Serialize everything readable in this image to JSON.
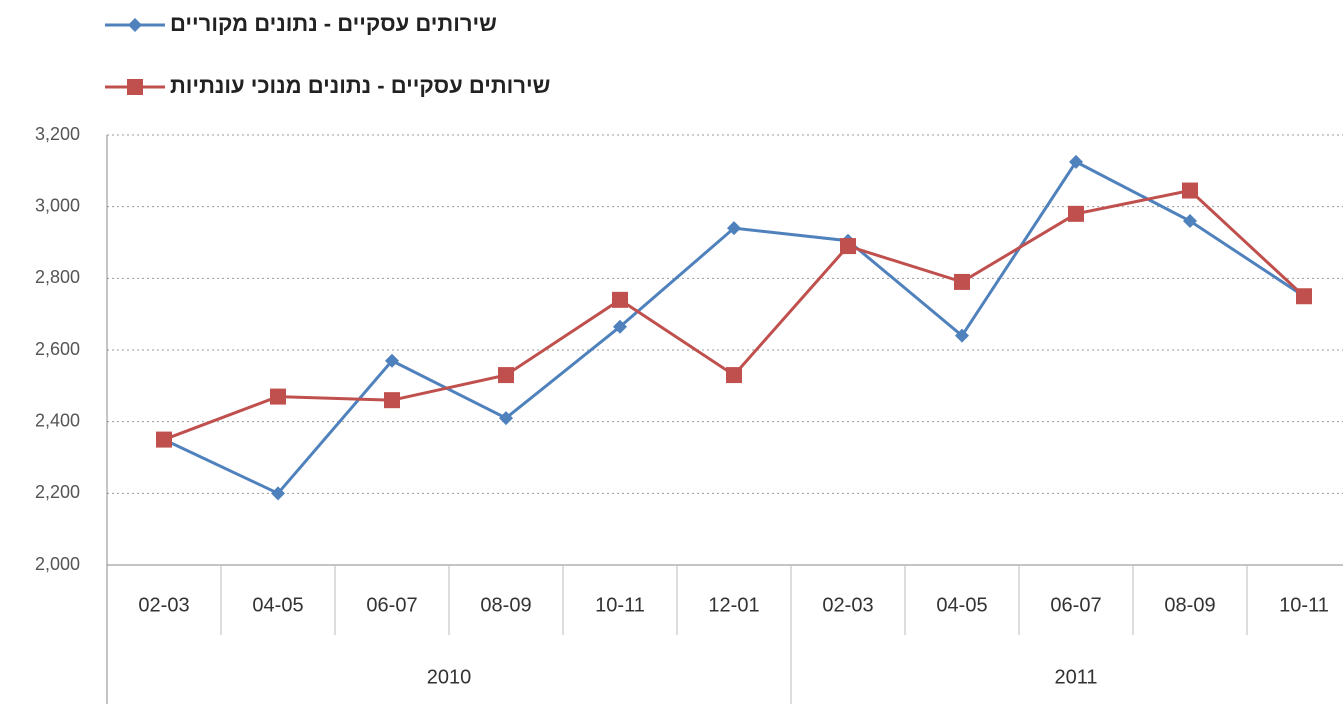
{
  "chart_data": {
    "type": "line",
    "categories": [
      "02-03",
      "04-05",
      "06-07",
      "08-09",
      "10-11",
      "12-01",
      "02-03",
      "04-05",
      "06-07",
      "08-09",
      "10-11"
    ],
    "category_groups": [
      {
        "label": "2010",
        "count": 6
      },
      {
        "label": "2011",
        "count": 5
      }
    ],
    "series": [
      {
        "name": "שירותים עסקיים - נתונים מקוריים",
        "color": "#4f81bd",
        "marker": "diamond",
        "values": [
          2350,
          2200,
          2570,
          2410,
          2665,
          2940,
          2905,
          2640,
          3125,
          2960,
          2750
        ]
      },
      {
        "name": "שירותים עסקיים - נתונים מנוכי עונתיות",
        "color": "#c0504d",
        "marker": "square",
        "values": [
          2350,
          2470,
          2460,
          2530,
          2740,
          2530,
          2890,
          2790,
          2980,
          3045,
          2750
        ]
      }
    ],
    "ylim": [
      2000,
      3200
    ],
    "yticks": [
      {
        "value": 2000,
        "label": "2,000"
      },
      {
        "value": 2200,
        "label": "2,200"
      },
      {
        "value": 2400,
        "label": "2,400"
      },
      {
        "value": 2600,
        "label": "2,600"
      },
      {
        "value": 2800,
        "label": "2,800"
      },
      {
        "value": 3000,
        "label": "3,000"
      },
      {
        "value": 3200,
        "label": "3,200"
      }
    ],
    "grid": true
  }
}
